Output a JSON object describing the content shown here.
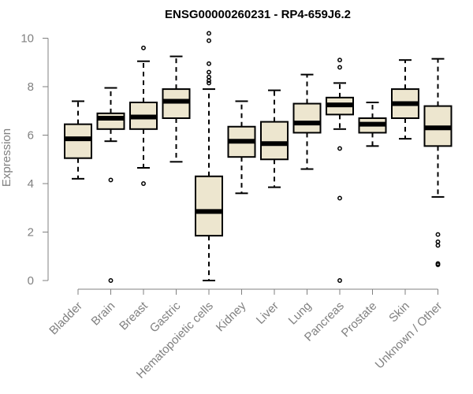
{
  "chart_data": {
    "type": "boxplot",
    "title": "ENSG00000260231 - RP4-659J6.2",
    "xlabel": "",
    "ylabel": "Expression",
    "ylim": [
      0,
      10
    ],
    "yticks": [
      0,
      2,
      4,
      6,
      8,
      10
    ],
    "box_fill": "#ede6cf",
    "categories": [
      "Bladder",
      "Brain",
      "Breast",
      "Gastric",
      "Hematopoietic cells",
      "Kidney",
      "Liver",
      "Lung",
      "Pancreas",
      "Prostate",
      "Skin",
      "Unknown / Other"
    ],
    "boxes": [
      {
        "name": "Bladder",
        "whisker_low": 4.2,
        "q1": 5.05,
        "median": 5.85,
        "q3": 6.45,
        "whisker_high": 7.4,
        "outliers": []
      },
      {
        "name": "Brain",
        "whisker_low": 5.75,
        "q1": 6.25,
        "median": 6.7,
        "q3": 6.9,
        "whisker_high": 7.95,
        "outliers": [
          4.15,
          0.0
        ]
      },
      {
        "name": "Breast",
        "whisker_low": 4.65,
        "q1": 6.25,
        "median": 6.75,
        "q3": 7.35,
        "whisker_high": 9.05,
        "outliers": [
          9.6,
          4.0
        ]
      },
      {
        "name": "Gastric",
        "whisker_low": 4.9,
        "q1": 6.7,
        "median": 7.4,
        "q3": 7.9,
        "whisker_high": 9.25,
        "outliers": []
      },
      {
        "name": "Hematopoietic cells",
        "whisker_low": 0.0,
        "q1": 1.85,
        "median": 2.85,
        "q3": 4.3,
        "whisker_high": 7.9,
        "outliers": [
          10.2,
          9.9,
          8.95,
          8.6,
          8.4,
          8.25,
          8.15
        ]
      },
      {
        "name": "Kidney",
        "whisker_low": 3.6,
        "q1": 5.1,
        "median": 5.75,
        "q3": 6.35,
        "whisker_high": 7.4,
        "outliers": []
      },
      {
        "name": "Liver",
        "whisker_low": 3.85,
        "q1": 5.0,
        "median": 5.65,
        "q3": 6.55,
        "whisker_high": 7.85,
        "outliers": []
      },
      {
        "name": "Lung",
        "whisker_low": 4.6,
        "q1": 6.1,
        "median": 6.5,
        "q3": 7.3,
        "whisker_high": 8.5,
        "outliers": []
      },
      {
        "name": "Pancreas",
        "whisker_low": 6.25,
        "q1": 6.85,
        "median": 7.25,
        "q3": 7.55,
        "whisker_high": 8.15,
        "outliers": [
          9.1,
          8.8,
          5.45,
          3.4,
          0.0
        ]
      },
      {
        "name": "Prostate",
        "whisker_low": 5.55,
        "q1": 6.1,
        "median": 6.45,
        "q3": 6.7,
        "whisker_high": 7.35,
        "outliers": []
      },
      {
        "name": "Skin",
        "whisker_low": 5.85,
        "q1": 6.7,
        "median": 7.3,
        "q3": 7.9,
        "whisker_high": 9.1,
        "outliers": []
      },
      {
        "name": "Unknown / Other",
        "whisker_low": 3.45,
        "q1": 5.55,
        "median": 6.3,
        "q3": 7.2,
        "whisker_high": 9.15,
        "outliers": [
          1.9,
          1.6,
          1.45,
          0.7,
          0.65
        ]
      }
    ]
  }
}
